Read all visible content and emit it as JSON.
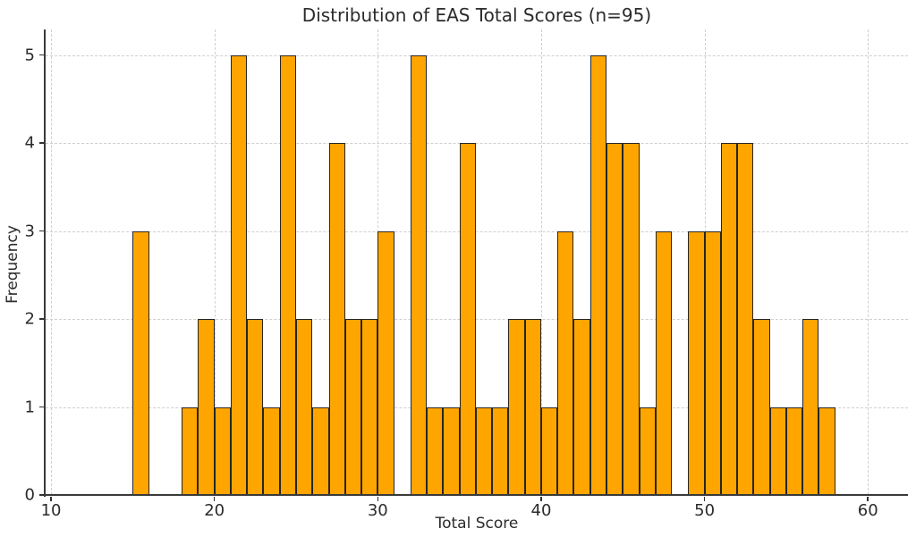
{
  "chart_data": {
    "type": "bar",
    "chart_kind": "histogram",
    "title": "Distribution of EAS Total Scores (n=95)",
    "xlabel": "Total Score",
    "ylabel": "Frequency",
    "sample_size": 95,
    "bin_start": 15,
    "bin_width": 1,
    "categories": [
      15,
      16,
      17,
      18,
      19,
      20,
      21,
      22,
      23,
      24,
      25,
      26,
      27,
      28,
      29,
      30,
      31,
      32,
      33,
      34,
      35,
      36,
      37,
      38,
      39,
      40,
      41,
      42,
      43,
      44,
      45,
      46,
      47,
      48,
      49,
      50,
      51,
      52,
      53,
      54,
      55,
      56,
      57
    ],
    "values": [
      3,
      0,
      0,
      1,
      2,
      1,
      5,
      2,
      1,
      5,
      2,
      1,
      4,
      2,
      2,
      3,
      0,
      5,
      1,
      1,
      4,
      1,
      1,
      2,
      2,
      1,
      3,
      2,
      5,
      4,
      4,
      1,
      3,
      0,
      3,
      3,
      4,
      4,
      2,
      1,
      1,
      2,
      1
    ],
    "xticks": [
      10,
      20,
      30,
      40,
      50,
      60
    ],
    "yticks": [
      0,
      1,
      2,
      3,
      4,
      5
    ],
    "xlim": [
      9.67,
      62.45
    ],
    "ylim": [
      0,
      5.29
    ],
    "grid": true,
    "grid_style": "dashed",
    "legend": "none",
    "colors": {
      "bar_fill": "#FFA500",
      "bar_edge": "#262626",
      "grid": "#cfcfcf",
      "spine": "#3a3a3a",
      "text": "#2b2b2b",
      "background": "#ffffff"
    }
  }
}
